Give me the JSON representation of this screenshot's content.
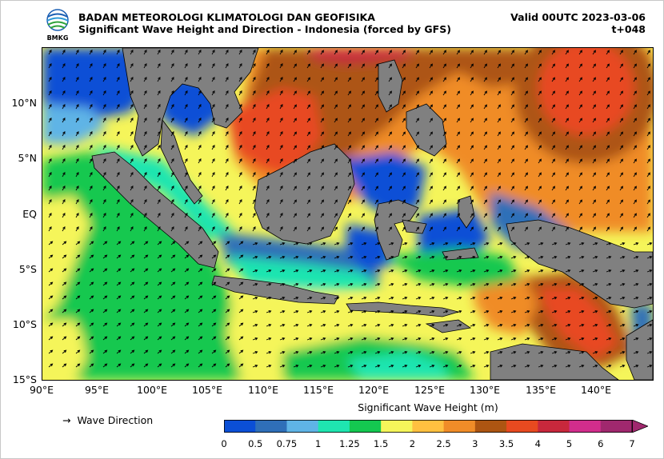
{
  "header": {
    "agency": "BADAN METEOROLOGI KLIMATOLOGI DAN GEOFISIKA",
    "product": "Significant Wave Height and Direction - Indonesia (forced by GFS)",
    "valid": "Valid 00UTC 2023-03-06",
    "lead": "t+048",
    "logo_text": "BMKG"
  },
  "axes": {
    "lat_labels": [
      "10°N",
      "5°N",
      "EQ",
      "5°S",
      "10°S",
      "15°S"
    ],
    "lon_labels": [
      "90°E",
      "95°E",
      "100°E",
      "105°E",
      "110°E",
      "115°E",
      "120°E",
      "125°E",
      "130°E",
      "135°E",
      "140°E"
    ]
  },
  "legend": {
    "arrow": "→",
    "direction_label": "Wave Direction",
    "colorbar_title": "Significant Wave Height (m)",
    "ticks": [
      "0",
      "0.5",
      "0.75",
      "1",
      "1.25",
      "1.5",
      "2",
      "2.5",
      "3",
      "3.5",
      "4",
      "5",
      "6",
      "7"
    ],
    "colors": [
      "#0b4fd6",
      "#2f6fb8",
      "#5fb4e6",
      "#1fe5b0",
      "#14c850",
      "#f5f55a",
      "#ffc040",
      "#f08c28",
      "#ad5512",
      "#e84a20",
      "#c8283c",
      "#d22d8c",
      "#a0286e"
    ]
  },
  "map": {
    "land_color": "#808080",
    "coast_color": "#000000",
    "arrow_color": "#000000"
  }
}
